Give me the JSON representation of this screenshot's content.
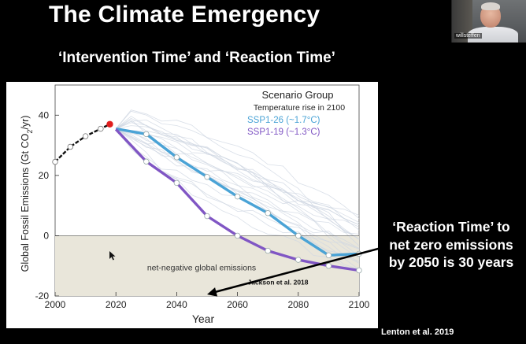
{
  "slide": {
    "title": "The Climate Emergency",
    "subtitle": "‘Intervention Time’ and ‘Reaction Time’",
    "callout": "‘Reaction Time’ to net zero emissions by 2050 is 30 years",
    "citation": "Lenton et al. 2019"
  },
  "video_tile": {
    "participant_name": "willsteffen",
    "icon": "participant-video-icon"
  },
  "colors": {
    "ssp1_26": "#4aa3d6",
    "ssp1_19": "#8056c4",
    "history": "#111111",
    "negative_zone": "#e9e6da",
    "marker_2018": "#e01e1e",
    "grey_lines": "#cfd7e2"
  },
  "chart_data": {
    "type": "line",
    "title": "Scenario Group",
    "subtitle": "Temperature rise in 2100",
    "xlabel": "Year",
    "ylabel": "Global Fossil Emissions (Gt CO2/yr)",
    "xlim": [
      2000,
      2100
    ],
    "ylim": [
      -20,
      50
    ],
    "xticks": [
      2000,
      2020,
      2040,
      2060,
      2080,
      2100
    ],
    "yticks": [
      -20,
      0,
      20,
      40
    ],
    "grid": false,
    "legend_position": "top-right",
    "zone_label": "net-negative global emissions",
    "annotation": "Jackson et al. 2018",
    "arrow_target": {
      "x": 2050,
      "y": -20
    },
    "history": {
      "x": [
        2000,
        2005,
        2010,
        2015,
        2018
      ],
      "y": [
        24.5,
        29.5,
        33.0,
        35.5,
        37.0
      ],
      "marker_year_2018": {
        "x": 2018,
        "y": 37.0
      }
    },
    "series": [
      {
        "name": "SSP1-26 (~1.7°C)",
        "color_key": "ssp1_26",
        "x": [
          2020,
          2030,
          2040,
          2050,
          2060,
          2070,
          2080,
          2090,
          2100
        ],
        "y": [
          35.5,
          33.7,
          26.0,
          19.5,
          13.0,
          7.5,
          0.0,
          -6.5,
          -6.0
        ]
      },
      {
        "name": "SSP1-19 (~1.3°C)",
        "color_key": "ssp1_19",
        "x": [
          2020,
          2030,
          2040,
          2050,
          2060,
          2070,
          2080,
          2090,
          2100
        ],
        "y": [
          35.3,
          24.6,
          17.5,
          6.5,
          0.0,
          -5.0,
          -8.0,
          -10.0,
          -11.5
        ]
      }
    ]
  }
}
